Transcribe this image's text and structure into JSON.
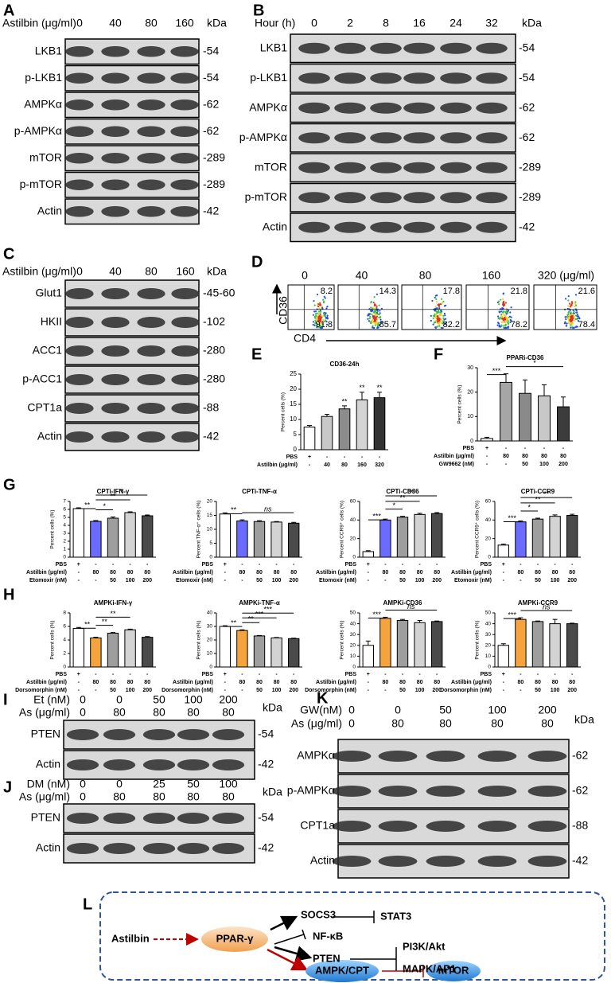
{
  "panels": {
    "A": {
      "letter": "A",
      "treatment": "Astilbin (μg/ml)",
      "doses": [
        "0",
        "40",
        "80",
        "160"
      ],
      "unit": "kDa",
      "rows": [
        {
          "protein": "LKB1",
          "kda": "-54"
        },
        {
          "protein": "p-LKB1",
          "kda": "-54"
        },
        {
          "protein": "AMPKα",
          "kda": "-62"
        },
        {
          "protein": "p-AMPKα",
          "kda": "-62"
        },
        {
          "protein": "mTOR",
          "kda": "-289"
        },
        {
          "protein": "p-mTOR",
          "kda": "-289"
        },
        {
          "protein": "Actin",
          "kda": "-42"
        }
      ]
    },
    "B": {
      "letter": "B",
      "treatment": "Hour (h)",
      "doses": [
        "0",
        "2",
        "8",
        "16",
        "24",
        "32"
      ],
      "unit": "kDa",
      "rows": [
        {
          "protein": "LKB1",
          "kda": "-54"
        },
        {
          "protein": "p-LKB1",
          "kda": "-54"
        },
        {
          "protein": "AMPKα",
          "kda": "-62"
        },
        {
          "protein": "p-AMPKα",
          "kda": "-62"
        },
        {
          "protein": "mTOR",
          "kda": "-289"
        },
        {
          "protein": "p-mTOR",
          "kda": "-289"
        },
        {
          "protein": "Actin",
          "kda": "-42"
        }
      ]
    },
    "C": {
      "letter": "C",
      "treatment": "Astilbin (μg/ml)",
      "doses": [
        "0",
        "40",
        "80",
        "160"
      ],
      "unit": "kDa",
      "rows": [
        {
          "protein": "Glut1",
          "kda": "-45-60"
        },
        {
          "protein": "HKII",
          "kda": "-102"
        },
        {
          "protein": "ACC1",
          "kda": "-280"
        },
        {
          "protein": "p-ACC1",
          "kda": "-280"
        },
        {
          "protein": "CPT1a",
          "kda": "-88"
        },
        {
          "protein": "Actin",
          "kda": "-42"
        }
      ]
    },
    "D": {
      "letter": "D",
      "doses": [
        "0",
        "40",
        "80",
        "160",
        "320 (μg/ml)"
      ],
      "y_marker": "CD36",
      "x_marker": "CD4",
      "quadrants": [
        {
          "upper": "8.2",
          "lower": "91.8"
        },
        {
          "upper": "14.3",
          "lower": "85.7"
        },
        {
          "upper": "17.8",
          "lower": "82.2"
        },
        {
          "upper": "21.8",
          "lower": "78.2"
        },
        {
          "upper": "21.6",
          "lower": "78.4"
        }
      ]
    },
    "E": {
      "letter": "E",
      "chart": {
        "type": "bar",
        "title": "CD36-24h",
        "y_label": "Percent cells (%)",
        "ylim": [
          0,
          25
        ],
        "yticks": [
          0,
          5,
          10,
          15,
          20,
          25
        ],
        "values": [
          7.5,
          11,
          13.5,
          16.5,
          17.2
        ],
        "errors": [
          0.5,
          0.7,
          1,
          2.5,
          1.8
        ],
        "colors": [
          "#ffffff",
          "#c8c8c8",
          "#8c8c8c",
          "#d4d4d4",
          "#333333"
        ],
        "conditions": [
          {
            "label": "PBS",
            "values": [
              "+",
              "-",
              "-",
              "-",
              "-"
            ]
          },
          {
            "label": "Astilbin (μg/ml)",
            "values": [
              "-",
              "40",
              "80",
              "160",
              "320"
            ]
          }
        ],
        "significance": [
          "**",
          "**",
          "**"
        ]
      }
    },
    "F": {
      "letter": "F",
      "chart": {
        "type": "bar",
        "title": "PPARi-CD36",
        "y_label": "Percent cells (%)",
        "ylim": [
          0,
          30
        ],
        "yticks": [
          0,
          10,
          20,
          30
        ],
        "values": [
          1,
          24,
          19.5,
          18.5,
          14
        ],
        "errors": [
          0.5,
          3.5,
          5.5,
          4.5,
          4
        ],
        "colors": [
          "#ffffff",
          "#a6a6a6",
          "#8a8a8a",
          "#c8c8c8",
          "#3c3c3c"
        ],
        "conditions": [
          {
            "label": "PBS",
            "values": [
              "+",
              "-",
              "-",
              "-",
              "-"
            ]
          },
          {
            "label": "Astilbin (μg/ml)",
            "values": [
              "-",
              "80",
              "80",
              "80",
              "80"
            ]
          },
          {
            "label": "GW9662 (nM)",
            "values": [
              "-",
              "-",
              "50",
              "100",
              "200"
            ]
          }
        ],
        "significance": [
          "***",
          "*"
        ]
      }
    },
    "G": {
      "letter": "G",
      "charts": [
        {
          "type": "bar",
          "title": "CPTi-IFN-γ",
          "y_label": "Percent cells (%)",
          "ylim": [
            0,
            7
          ],
          "yticks": [
            0,
            1,
            2,
            3,
            4,
            5,
            6,
            7
          ],
          "values": [
            6.1,
            4.5,
            4.9,
            5.6,
            5.2
          ],
          "errors": [
            0.1,
            0.1,
            0.15,
            0.1,
            0.1
          ],
          "colors": [
            "#ffffff",
            "#6b6bff",
            "#9e9e9e",
            "#d3d3d3",
            "#4a4a4a"
          ],
          "conditions": [
            {
              "label": "PBS",
              "values": [
                "+",
                "-",
                "-",
                "-",
                "-"
              ]
            },
            {
              "label": "Astilbin (μg/ml)",
              "values": [
                "-",
                "80",
                "80",
                "80",
                "80"
              ]
            },
            {
              "label": "Etomoxir (nM)",
              "values": [
                "-",
                "-",
                "50",
                "100",
                "200"
              ]
            }
          ],
          "significance": [
            "**",
            "*",
            "**",
            "*"
          ]
        },
        {
          "type": "bar",
          "title": "CPTi-TNF-α",
          "y_label": "Percent TNF-α⁺ cells (%)",
          "ylim": [
            0,
            20
          ],
          "yticks": [
            0,
            5,
            10,
            15,
            20
          ],
          "values": [
            15.5,
            13,
            12.8,
            12.6,
            12.2
          ],
          "errors": [
            0.4,
            0.4,
            0.3,
            0.2,
            0.3
          ],
          "colors": [
            "#ffffff",
            "#6b6bff",
            "#9e9e9e",
            "#d3d3d3",
            "#4a4a4a"
          ],
          "conditions": [
            {
              "label": "PBS",
              "values": [
                "+",
                "-",
                "-",
                "-",
                "-"
              ]
            },
            {
              "label": "Astilbin (μg/ml)",
              "values": [
                "-",
                "80",
                "80",
                "80",
                "80"
              ]
            },
            {
              "label": "Etomoxir (nM)",
              "values": [
                "-",
                "-",
                "50",
                "100",
                "200"
              ]
            }
          ],
          "significance": [
            "**",
            "ns"
          ]
        },
        {
          "type": "bar",
          "title": "CPTi-CD36",
          "y_label": "Percent CCR9⁺ cells (%)",
          "ylim": [
            0,
            60
          ],
          "yticks": [
            0,
            20,
            40,
            60
          ],
          "values": [
            6,
            40,
            43,
            46,
            47
          ],
          "errors": [
            1,
            1,
            1,
            1.2,
            1
          ],
          "colors": [
            "#ffffff",
            "#6b6bff",
            "#9e9e9e",
            "#d3d3d3",
            "#4a4a4a"
          ],
          "conditions": [
            {
              "label": "PBS",
              "values": [
                "+",
                "-",
                "-",
                "-",
                "-"
              ]
            },
            {
              "label": "Astilbin (μg/ml)",
              "values": [
                "-",
                "80",
                "80",
                "80",
                "80"
              ]
            },
            {
              "label": "Etomoxir (nM)",
              "values": [
                "-",
                "-",
                "50",
                "100",
                "200"
              ]
            }
          ],
          "significance": [
            "***",
            "*",
            "**",
            "**"
          ]
        },
        {
          "type": "bar",
          "title": "CPTi-CCR9",
          "y_label": "Percent CCR9⁺ cells (%)",
          "ylim": [
            0,
            60
          ],
          "yticks": [
            0,
            20,
            40,
            60
          ],
          "values": [
            13,
            38,
            41,
            44,
            45
          ],
          "errors": [
            1,
            1,
            1,
            1.5,
            1.2
          ],
          "colors": [
            "#ffffff",
            "#6b6bff",
            "#9e9e9e",
            "#d3d3d3",
            "#4a4a4a"
          ],
          "conditions": [
            {
              "label": "PBS",
              "values": [
                "+",
                "-",
                "-",
                "-",
                "-"
              ]
            },
            {
              "label": "Astilbin (μg/ml)",
              "values": [
                "-",
                "80",
                "80",
                "80",
                "80"
              ]
            },
            {
              "label": "Etomoxir (nM)",
              "values": [
                "-",
                "-",
                "50",
                "100",
                "200"
              ]
            }
          ],
          "significance": [
            "***",
            "*",
            "**",
            "**"
          ]
        }
      ]
    },
    "H": {
      "letter": "H",
      "charts": [
        {
          "type": "bar",
          "title": "AMPKi-IFN-γ",
          "y_label": "Percent cells (%)",
          "ylim": [
            0,
            8
          ],
          "yticks": [
            0,
            2,
            4,
            6,
            8
          ],
          "values": [
            5.7,
            4.3,
            5.0,
            5.5,
            4.4
          ],
          "errors": [
            0.15,
            0.1,
            0.1,
            0.1,
            0.1
          ],
          "colors": [
            "#ffffff",
            "#f5a33c",
            "#9e9e9e",
            "#d3d3d3",
            "#4a4a4a"
          ],
          "conditions": [
            {
              "label": "PBS",
              "values": [
                "+",
                "-",
                "-",
                "-",
                "-"
              ]
            },
            {
              "label": "Astilbin (μg/ml)",
              "values": [
                "-",
                "80",
                "80",
                "80",
                "80"
              ]
            },
            {
              "label": "Dorsomorphin (nM)",
              "values": [
                "-",
                "-",
                "50",
                "100",
                "200"
              ]
            }
          ],
          "significance": [
            "**",
            "**",
            "**"
          ]
        },
        {
          "type": "bar",
          "title": "AMPKi-TNF-α",
          "y_label": "Percent cells (%)",
          "ylim": [
            0,
            40
          ],
          "yticks": [
            0,
            10,
            20,
            30,
            40
          ],
          "values": [
            30,
            27,
            23,
            21.5,
            21
          ],
          "errors": [
            0.5,
            0.5,
            0.3,
            0.3,
            0.3
          ],
          "colors": [
            "#ffffff",
            "#f5a33c",
            "#9e9e9e",
            "#d3d3d3",
            "#4a4a4a"
          ],
          "conditions": [
            {
              "label": "PBS",
              "values": [
                "+",
                "-",
                "-",
                "-",
                "-"
              ]
            },
            {
              "label": "Astilbin (μg/ml)",
              "values": [
                "-",
                "80",
                "80",
                "80",
                "80"
              ]
            },
            {
              "label": "Dorsomorphin (nM)",
              "values": [
                "-",
                "-",
                "50",
                "100",
                "200"
              ]
            }
          ],
          "significance": [
            "**",
            "**",
            "***",
            "***"
          ]
        },
        {
          "type": "bar",
          "title": "AMPKi-CD36",
          "y_label": "Percent cells (%)",
          "ylim": [
            0,
            50
          ],
          "yticks": [
            0,
            10,
            20,
            30,
            40,
            50
          ],
          "values": [
            20,
            45,
            43,
            41,
            42
          ],
          "errors": [
            4,
            1,
            1,
            2,
            0.5
          ],
          "colors": [
            "#ffffff",
            "#f5a33c",
            "#9e9e9e",
            "#d3d3d3",
            "#4a4a4a"
          ],
          "conditions": [
            {
              "label": "PBS",
              "values": [
                "+",
                "-",
                "-",
                "-",
                "-"
              ]
            },
            {
              "label": "Astilbin (μg/ml)",
              "values": [
                "-",
                "80",
                "80",
                "80",
                "80"
              ]
            },
            {
              "label": "Dorsomorphin (nM)",
              "values": [
                "-",
                "-",
                "50",
                "100",
                "200"
              ]
            }
          ],
          "significance": [
            "***",
            "ns"
          ]
        },
        {
          "type": "bar",
          "title": "AMPKi-CCR9",
          "y_label": "Percent cells (%)",
          "ylim": [
            0,
            50
          ],
          "yticks": [
            0,
            10,
            20,
            30,
            40,
            50
          ],
          "values": [
            20,
            44,
            42,
            40,
            40
          ],
          "errors": [
            1.5,
            1.5,
            0.5,
            4,
            0.5
          ],
          "colors": [
            "#ffffff",
            "#f5a33c",
            "#9e9e9e",
            "#d3d3d3",
            "#4a4a4a"
          ],
          "conditions": [
            {
              "label": "PBS",
              "values": [
                "+",
                "-",
                "-",
                "-",
                "-"
              ]
            },
            {
              "label": "Astilbin (μg/ml)",
              "values": [
                "-",
                "80",
                "80",
                "80",
                "80"
              ]
            },
            {
              "label": "Dorsomorphin (nM)",
              "values": [
                "-",
                "-",
                "50",
                "100",
                "200"
              ]
            }
          ],
          "significance": [
            "***",
            "ns"
          ]
        }
      ]
    },
    "I": {
      "letter": "I",
      "treatment_rows": [
        {
          "label": "Et (nM)",
          "values": [
            "0",
            "0",
            "50",
            "100",
            "200"
          ]
        },
        {
          "label": "As (μg/ml)",
          "values": [
            "0",
            "80",
            "80",
            "80",
            "80"
          ]
        }
      ],
      "unit": "kDa",
      "rows": [
        {
          "protein": "PTEN",
          "kda": "-54"
        },
        {
          "protein": "Actin",
          "kda": "-42"
        }
      ]
    },
    "J": {
      "letter": "J",
      "treatment_rows": [
        {
          "label": "DM (nM)",
          "values": [
            "0",
            "0",
            "25",
            "50",
            "100"
          ]
        },
        {
          "label": "As (μg/ml)",
          "values": [
            "0",
            "80",
            "80",
            "80",
            "80"
          ]
        }
      ],
      "unit": "kDa",
      "rows": [
        {
          "protein": "PTEN",
          "kda": "-54"
        },
        {
          "protein": "Actin",
          "kda": "-42"
        }
      ]
    },
    "K": {
      "letter": "K",
      "treatment_rows": [
        {
          "label": "GW(nM)",
          "values": [
            "0",
            "0",
            "50",
            "100",
            "200"
          ]
        },
        {
          "label": "As (μg/ml)",
          "values": [
            "0",
            "80",
            "80",
            "80",
            "80"
          ]
        }
      ],
      "unit": "kDa",
      "rows": [
        {
          "protein": "AMPKα",
          "kda": "-62"
        },
        {
          "protein": "p-AMPKα",
          "kda": "-62"
        },
        {
          "protein": "CPT1a",
          "kda": "-88"
        },
        {
          "protein": "Actin",
          "kda": "-42"
        }
      ]
    },
    "L": {
      "letter": "L",
      "nodes": {
        "astilbin": "Astilbin",
        "ppar": "PPAR-γ",
        "socs3": "SOCS3",
        "stat3": "STAT3",
        "nfkb": "NF-κB",
        "pten": "PTEN",
        "pi3k": "PI3K/Akt",
        "mapk": "MAPK/AP1",
        "ampk": "AMPK/CPT",
        "mtor": "mTOR"
      }
    }
  }
}
